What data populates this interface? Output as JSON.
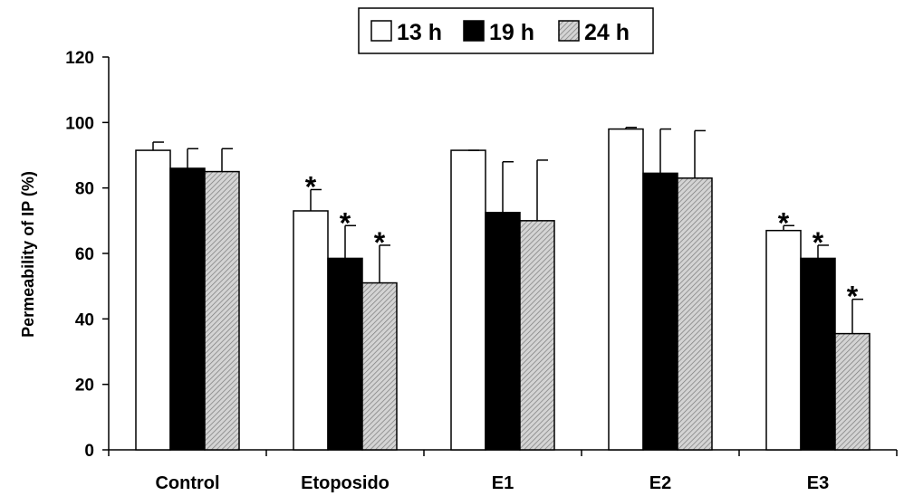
{
  "chart_data": {
    "type": "bar",
    "categories": [
      "Control",
      "Etoposido",
      "E1",
      "E2",
      "E3"
    ],
    "series": [
      {
        "name": "13 h",
        "fill": "#ffffff",
        "values": [
          91.5,
          73,
          91.5,
          98,
          67
        ],
        "errors": [
          2.5,
          6.5,
          0,
          0.5,
          1.5
        ],
        "significant": [
          false,
          true,
          false,
          false,
          true
        ]
      },
      {
        "name": "19 h",
        "fill": "#000000",
        "values": [
          86,
          58.5,
          72.5,
          84.5,
          58.5
        ],
        "errors": [
          6,
          10,
          15.5,
          13.5,
          4
        ],
        "significant": [
          false,
          true,
          false,
          false,
          true
        ]
      },
      {
        "name": "24 h",
        "fill": "hatch",
        "values": [
          85,
          51,
          70,
          83,
          35.5
        ],
        "errors": [
          7,
          11.5,
          18.5,
          14.5,
          10.5
        ],
        "significant": [
          false,
          true,
          false,
          false,
          true
        ]
      }
    ],
    "significance_marker": "*",
    "title": "",
    "xlabel": "",
    "ylabel": "Permeability of IP (%)",
    "ylim": [
      0,
      120
    ],
    "yticks": [
      "0",
      "20",
      "40",
      "60",
      "80",
      "100",
      "120"
    ],
    "grid": false,
    "legend_position": "top-center"
  }
}
